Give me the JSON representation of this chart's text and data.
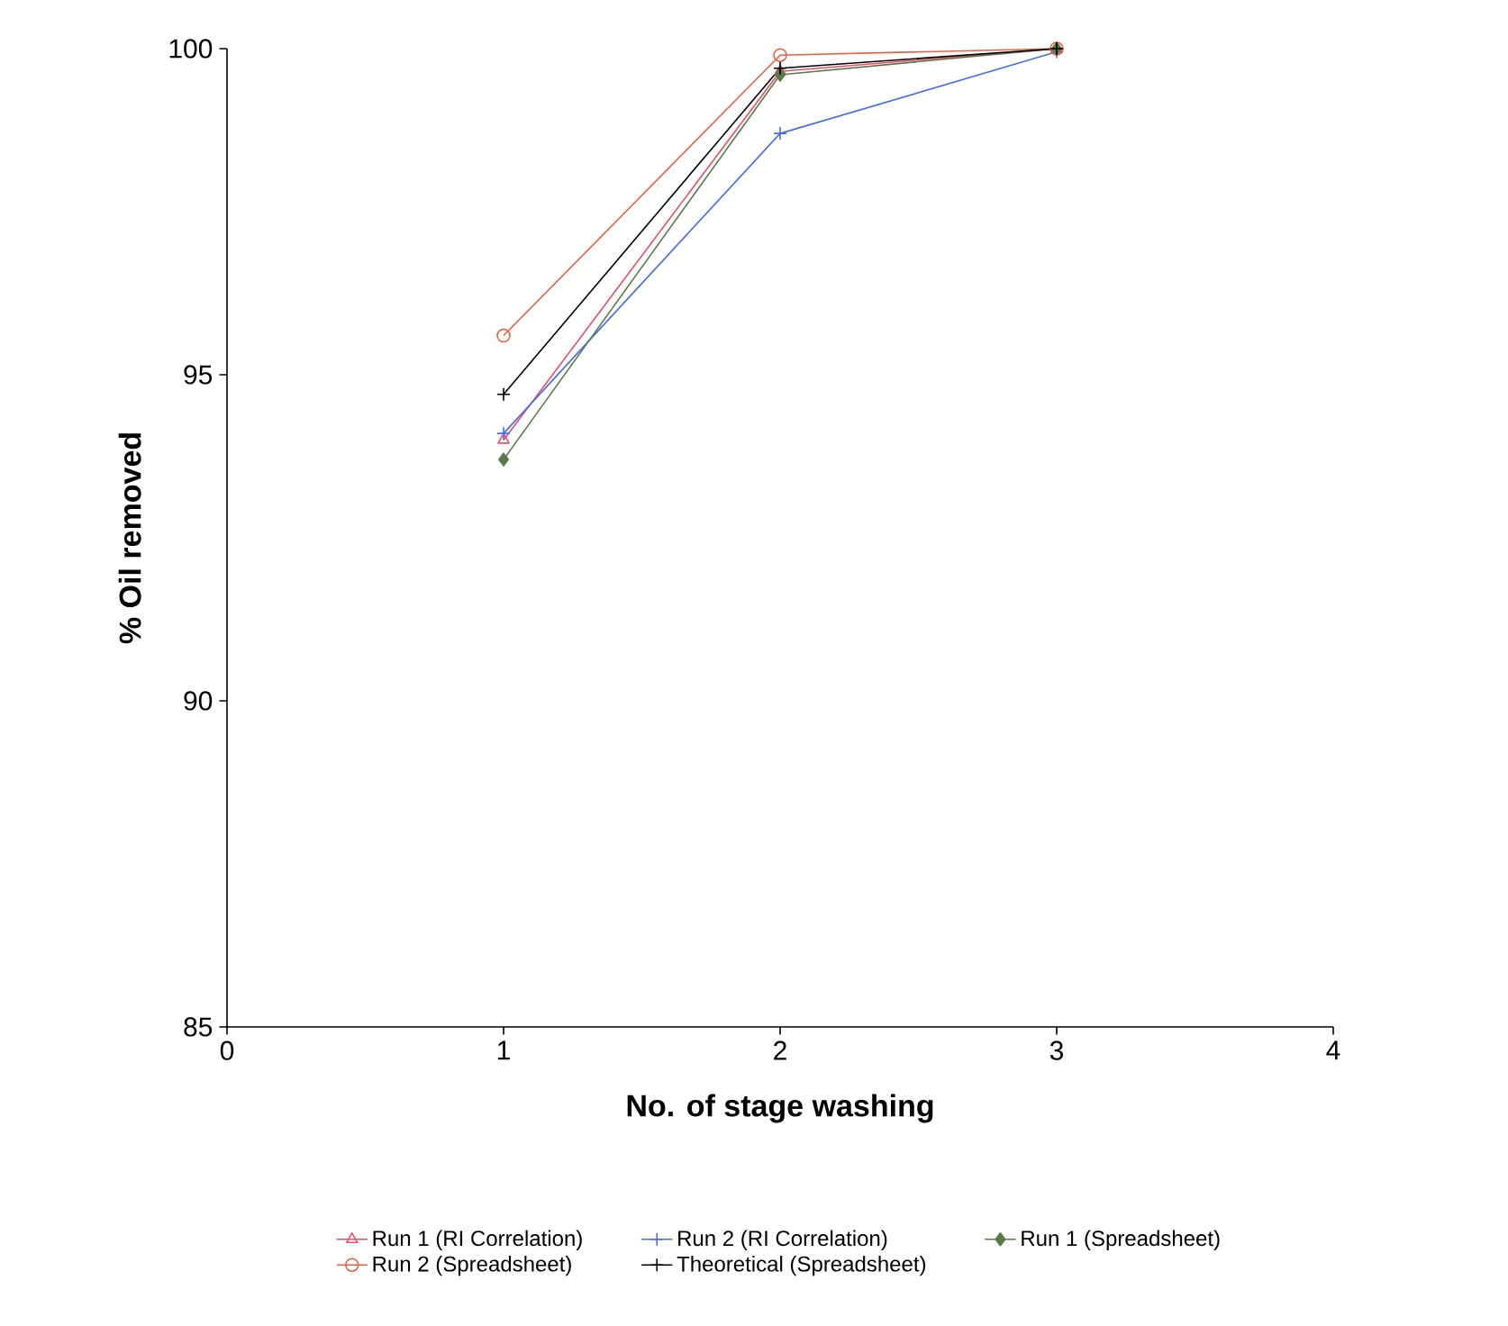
{
  "chart_data": {
    "type": "line",
    "xlabel": "No. of stage washing",
    "ylabel": "% Oil removed",
    "x": [
      1,
      2,
      3
    ],
    "xlim": [
      0,
      4
    ],
    "xticks": [
      0,
      1,
      2,
      3,
      4
    ],
    "ylim": [
      85,
      100
    ],
    "yticks": [
      85,
      90,
      95,
      100
    ],
    "grid": false,
    "legend": "bottom",
    "series": [
      {
        "name": "Run 1 (RI Correlation)",
        "color": "#e8506a",
        "marker": "triangle",
        "values": [
          94.0,
          99.65,
          100.0
        ]
      },
      {
        "name": "Run 2 (RI Correlation)",
        "color": "#4a6ee0",
        "marker": "cross",
        "values": [
          94.1,
          98.7,
          99.95
        ]
      },
      {
        "name": "Run 1 (Spreadsheet)",
        "color": "#5a7a4a",
        "marker": "diamond",
        "values": [
          93.7,
          99.6,
          100.0
        ]
      },
      {
        "name": "Run 2 (Spreadsheet)",
        "color": "#e86040",
        "marker": "circle",
        "values": [
          95.6,
          99.9,
          100.0
        ]
      },
      {
        "name": "Theoretical (Spreadsheet)",
        "color": "#000000",
        "marker": "cross",
        "values": [
          94.7,
          99.7,
          100.0
        ]
      }
    ]
  }
}
